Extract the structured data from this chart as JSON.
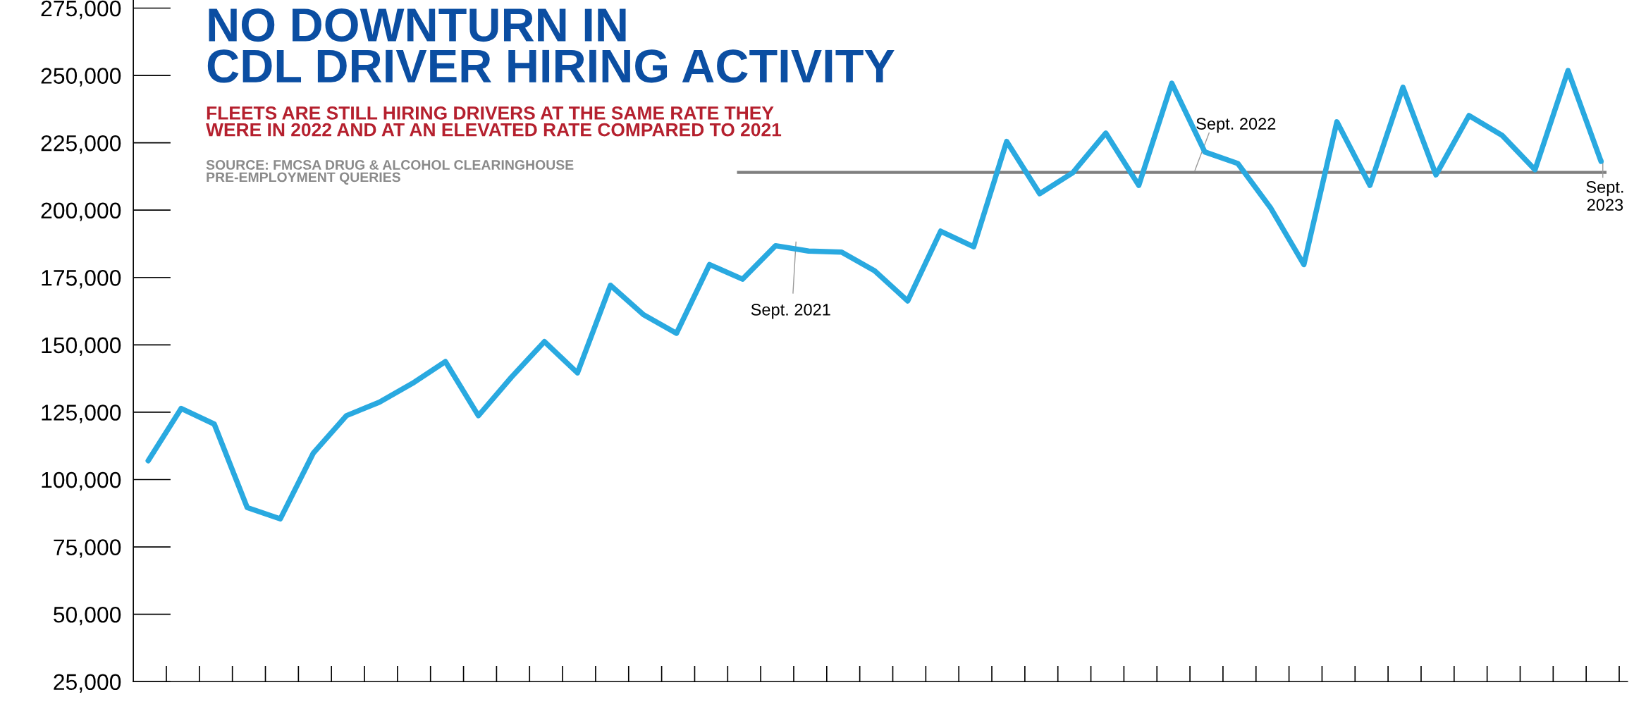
{
  "chart_data": {
    "type": "line",
    "title": "NO DOWNTURN IN\nCDL DRIVER HIRING ACTIVITY",
    "subtitle": "FLEETS ARE STILL HIRING DRIVERS AT THE SAME RATE THEY\nWERE IN 2022 AND AT AN ELEVATED RATE COMPARED TO 2021",
    "categories": [
      null,
      null,
      null,
      null,
      null,
      null,
      null,
      null,
      null,
      null,
      null,
      null,
      null,
      null,
      null,
      null,
      null,
      null,
      null,
      null,
      null,
      null,
      null,
      null,
      null,
      null,
      null,
      null,
      null,
      null,
      null,
      null,
      null,
      null,
      null,
      null,
      null,
      null,
      null,
      null,
      null,
      null,
      null,
      null,
      null
    ],
    "series": [
      {
        "color": "#29a9e0",
        "values": [
          107000,
          126400,
          120600,
          89600,
          85400,
          109800,
          123700,
          128700,
          135700,
          143800,
          123700,
          138000,
          151200,
          139600,
          172100,
          161200,
          154300,
          179800,
          174400,
          186800,
          184800,
          184400,
          177500,
          166300,
          192200,
          186400,
          225500,
          206100,
          213900,
          228600,
          209200,
          247100,
          221600,
          217300,
          200700,
          179800,
          232800,
          209200,
          245600,
          213100,
          235100,
          227800,
          215000,
          251800,
          218100
        ]
      }
    ],
    "ylim": [
      25000,
      278000
    ],
    "yticks": [
      {
        "value": 25000,
        "label": "25,000"
      },
      {
        "value": 50000,
        "label": "50,000"
      },
      {
        "value": 75000,
        "label": "75,000"
      },
      {
        "value": 100000,
        "label": "100,000"
      },
      {
        "value": 125000,
        "label": "125,000"
      },
      {
        "value": 150000,
        "label": "150,000"
      },
      {
        "value": 175000,
        "label": "175,000"
      },
      {
        "value": 200000,
        "label": "200,000"
      },
      {
        "value": 225000,
        "label": "225,000"
      },
      {
        "value": 250000,
        "label": "250,000"
      },
      {
        "value": 275000,
        "label": "275,000"
      }
    ],
    "ref_lines": [
      {
        "axis": "y",
        "value": 214000,
        "color": "#7f7f7f"
      }
    ],
    "annotations": [
      "SOURCE: FMCSA DRUG & ALCOHOL CLEARINGHOUSE\nPRE-EMPLOYMENT QUERIES",
      "Sept. 2021",
      "Sept. 2022",
      "Sept.\n2023"
    ],
    "grid": false,
    "marker": "none",
    "line_style": "solid"
  }
}
